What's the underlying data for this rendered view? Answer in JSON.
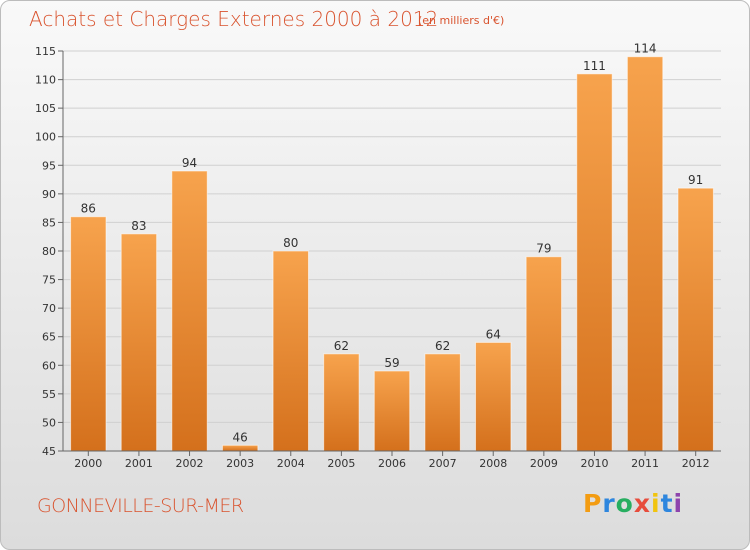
{
  "header": {
    "title": "Achats et Charges Externes 2000 à 2012",
    "subtitle": "(en milliers d'€)"
  },
  "footer": {
    "place": "GONNEVILLE-SUR-MER",
    "brand_letters": [
      "P",
      "r",
      "o",
      "x",
      "i",
      "t",
      "i"
    ],
    "brand_colors": [
      "#f39c12",
      "#2e86de",
      "#27ae60",
      "#e74c3c",
      "#f1c40f",
      "#2e86de",
      "#8e44ad"
    ]
  },
  "colors": {
    "bar_top": "#f7a34d",
    "bar_bottom": "#d4701c",
    "grid": "#d0d0d0",
    "text_accent": "#d9532e"
  },
  "chart_data": {
    "type": "bar",
    "title": "Achats et Charges Externes 2000 à 2012",
    "subtitle": "(en milliers d'€)",
    "xlabel": "",
    "ylabel": "",
    "categories": [
      "2000",
      "2001",
      "2002",
      "2003",
      "2004",
      "2005",
      "2006",
      "2007",
      "2008",
      "2009",
      "2010",
      "2011",
      "2012"
    ],
    "values": [
      86,
      83,
      94,
      46,
      80,
      62,
      59,
      62,
      64,
      79,
      111,
      114,
      91
    ],
    "ylim": [
      45,
      115
    ],
    "yticks": [
      45,
      50,
      55,
      60,
      65,
      70,
      75,
      80,
      85,
      90,
      95,
      100,
      105,
      110,
      115
    ],
    "grid": true
  }
}
